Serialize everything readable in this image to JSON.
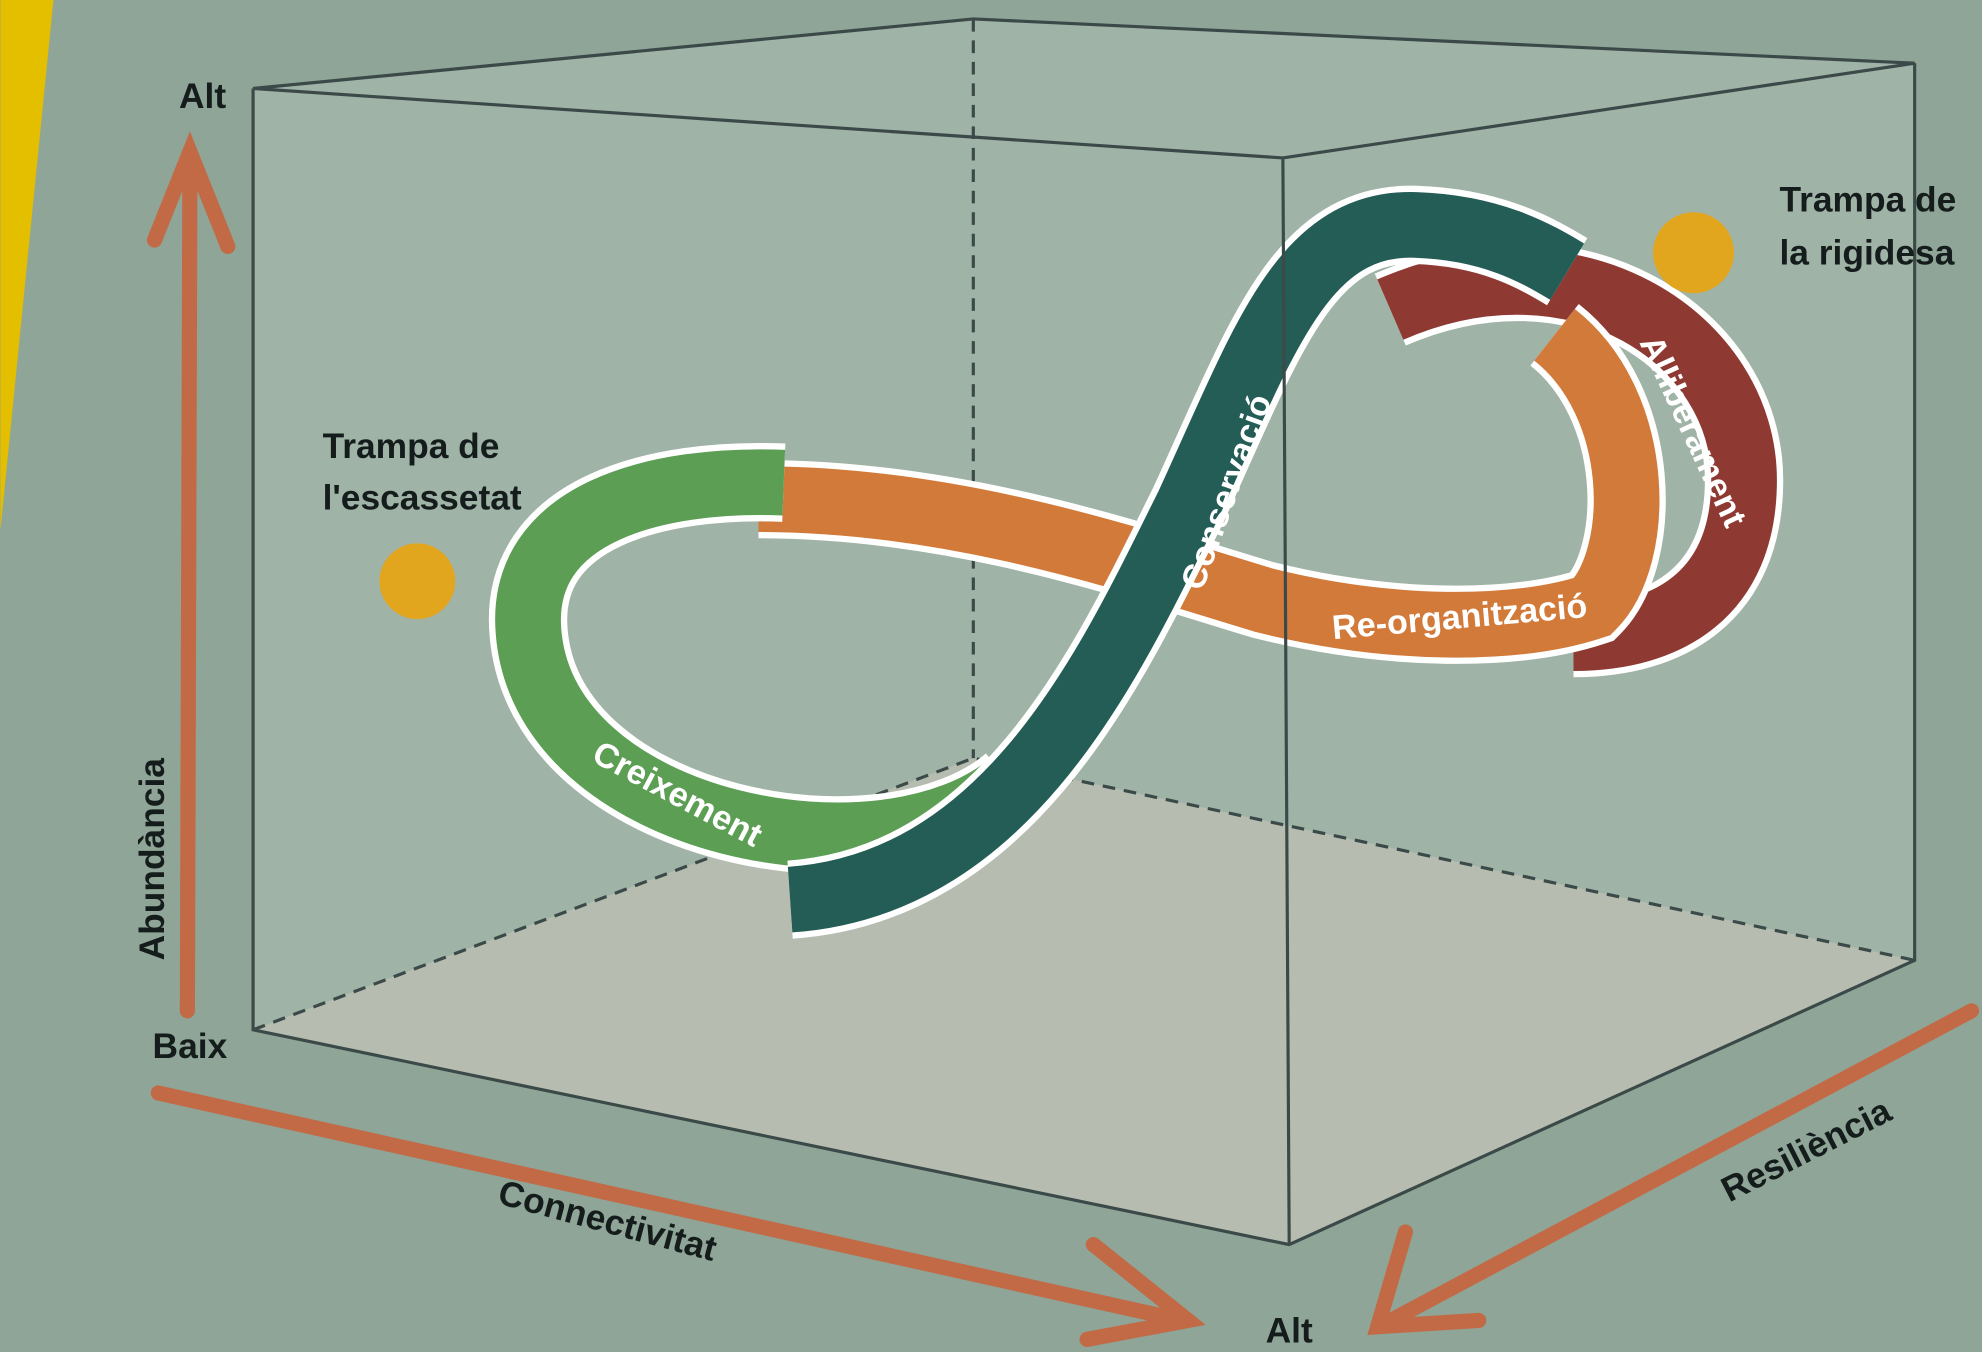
{
  "axes": {
    "abundance": {
      "label": "Abundància",
      "high": "Alt",
      "low": "Baix"
    },
    "connectivity": {
      "label": "Connectivitat"
    },
    "resilience": {
      "label": "Resiliència"
    },
    "corner_high": "Alt"
  },
  "traps": [
    {
      "lines": [
        "Trampa de",
        "l'escassetat"
      ]
    },
    {
      "lines": [
        "Trampa de",
        "la rigidesa"
      ]
    }
  ],
  "phases": [
    {
      "label": "Creixement"
    },
    {
      "label": "Conservació"
    },
    {
      "label": "Alliberament"
    },
    {
      "label": "Re-organització"
    }
  ]
}
